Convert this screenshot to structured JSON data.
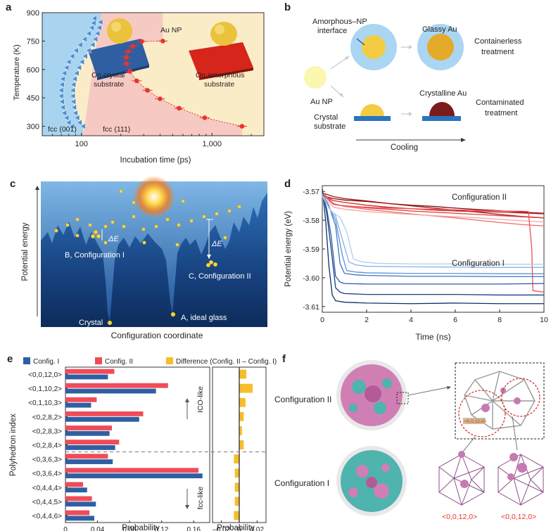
{
  "panel_labels": [
    "a",
    "b",
    "c",
    "d",
    "e",
    "f"
  ],
  "colors": {
    "fcc_region": "#a9d4ef",
    "crystal_region": "#f7c9c3",
    "amorphous_region": "#fbecc8",
    "tri_marker": "#4d8fd1",
    "red_marker": "#e8332f",
    "config1_bar": "#2e5fa3",
    "config2_bar": "#ef4b59",
    "difference_bar": "#f6be2b",
    "gold": "#f3cc43",
    "crystal_substrate": "#2f5fa2",
    "amorphous_substrate": "#d6251a"
  },
  "panel_a": {
    "ylabel": "Temperature (K)",
    "xlabel": "Incubation time (ps)",
    "annotations": {
      "au_np": "Au NP",
      "crystal": [
        "On crystal",
        "substrate"
      ],
      "amorphous": [
        "On amorphous",
        "substrate"
      ],
      "fcc001": "fcc (001)",
      "fcc111": "fcc (111)"
    }
  },
  "panel_b": {
    "amorphous_interface": [
      "Amorphous–NP",
      "interface"
    ],
    "glassy_au": "Glassy Au",
    "containerless": [
      "Containerless",
      "treatment"
    ],
    "au_np": "Au NP",
    "crystal_substrate": [
      "Crystal",
      "substrate"
    ],
    "crystalline_au": "Crystalline Au",
    "contaminated": [
      "Contaminated",
      "treatment"
    ],
    "cooling": "Cooling"
  },
  "panel_c": {
    "ylabel": "Potential energy",
    "xlabel": "Configuration coordinate",
    "delta_e": "ΔE",
    "config1": "B, Configuration I",
    "config2": "C, Configuration II",
    "crystal": "Crystal",
    "glass": "A, ideal glass"
  },
  "panel_f": {
    "config2": "Configuration II",
    "config1": "Configuration I",
    "poly_label": "<0,0,12,0>"
  },
  "chart_data": [
    {
      "panel": "a",
      "type": "scatter",
      "xlabel": "Incubation time (ps)",
      "ylabel": "Temperature (K)",
      "xscale": "log",
      "xlim": [
        50,
        2500
      ],
      "ylim": [
        250,
        900
      ],
      "xticks": [
        100,
        1000
      ],
      "xtick_labels": [
        "100",
        "1,000"
      ],
      "yticks": [
        300,
        450,
        600,
        750,
        900
      ],
      "series": [
        {
          "name": "fcc (001)",
          "points": [
            [
              85,
              300
            ],
            [
              80,
              320
            ],
            [
              77,
              345
            ],
            [
              74,
              370
            ],
            [
              72,
              400
            ],
            [
              71,
              430
            ],
            [
              70,
              460
            ],
            [
              70,
              490
            ],
            [
              71,
              520
            ],
            [
              72,
              550
            ],
            [
              74,
              580
            ],
            [
              77,
              610
            ],
            [
              80,
              640
            ],
            [
              85,
              670
            ],
            [
              91,
              700
            ],
            [
              98,
              730
            ],
            [
              106,
              760
            ],
            [
              114,
              790
            ],
            [
              120,
              820
            ],
            [
              124,
              845
            ],
            [
              126,
              870
            ]
          ]
        },
        {
          "name": "fcc (111)",
          "points": [
            [
              103,
              300
            ],
            [
              97,
              320
            ],
            [
              93,
              345
            ],
            [
              90,
              370
            ],
            [
              88,
              400
            ],
            [
              87,
              430
            ],
            [
              86,
              460
            ],
            [
              86,
              490
            ],
            [
              87,
              520
            ],
            [
              89,
              550
            ],
            [
              92,
              580
            ],
            [
              96,
              610
            ],
            [
              101,
              640
            ],
            [
              107,
              670
            ],
            [
              114,
              700
            ],
            [
              122,
              730
            ],
            [
              128,
              760
            ],
            [
              133,
              790
            ],
            [
              137,
              820
            ],
            [
              140,
              850
            ]
          ]
        },
        {
          "name": "Au NP",
          "points": [
            [
              1700,
              300
            ],
            [
              880,
              345
            ],
            [
              560,
              395
            ],
            [
              400,
              445
            ],
            [
              320,
              490
            ],
            [
              265,
              540
            ],
            [
              235,
              590
            ],
            [
              222,
              630
            ],
            [
              220,
              665
            ],
            [
              228,
              695
            ],
            [
              248,
              722
            ],
            [
              290,
              748
            ],
            [
              420,
              750
            ]
          ]
        }
      ]
    },
    {
      "panel": "d",
      "type": "line",
      "xlabel": "Time (ns)",
      "ylabel": "Potential energy (eV)",
      "xlim": [
        0,
        10
      ],
      "ylim": [
        -3.612,
        -3.568
      ],
      "xticks": [
        0,
        2,
        4,
        6,
        8,
        10
      ],
      "yticks": [
        -3.57,
        -3.58,
        -3.59,
        -3.6,
        -3.61
      ],
      "annotations": [
        "Configuration II",
        "Configuration I"
      ],
      "series": [
        {
          "group": "Configuration II",
          "color": "#7d0c0c",
          "x": [
            0,
            0.5,
            1,
            2,
            3,
            4,
            5,
            6,
            7,
            8,
            9,
            10
          ],
          "y": [
            -3.5715,
            -3.5725,
            -3.573,
            -3.5735,
            -3.5742,
            -3.5748,
            -3.5752,
            -3.5758,
            -3.5763,
            -3.5767,
            -3.5772,
            -3.5776
          ]
        },
        {
          "group": "Configuration II",
          "color": "#a31515",
          "x": [
            0,
            0.5,
            1,
            2,
            3,
            4,
            5,
            6,
            7,
            8,
            9,
            10
          ],
          "y": [
            -3.5705,
            -3.5718,
            -3.5725,
            -3.5733,
            -3.5742,
            -3.575,
            -3.5758,
            -3.5765,
            -3.5772,
            -3.578,
            -3.5787,
            -3.5792
          ]
        },
        {
          "group": "Configuration II",
          "color": "#c8262a",
          "x": [
            0,
            0.5,
            1,
            2,
            3,
            4,
            5,
            6,
            7,
            8,
            9,
            10
          ],
          "y": [
            -3.5712,
            -3.5732,
            -3.5738,
            -3.5748,
            -3.5755,
            -3.576,
            -3.5765,
            -3.5768,
            -3.577,
            -3.5772,
            -3.5775,
            -3.5778
          ]
        },
        {
          "group": "Configuration II",
          "color": "#e03a3a",
          "x": [
            0,
            0.5,
            1,
            2,
            3,
            4,
            5,
            6,
            7,
            8,
            9,
            10
          ],
          "y": [
            -3.5708,
            -3.5745,
            -3.575,
            -3.5757,
            -3.5762,
            -3.5768,
            -3.5772,
            -3.5776,
            -3.578,
            -3.5784,
            -3.5788,
            -3.5792
          ]
        },
        {
          "group": "Configuration II",
          "color": "#ee6b6b",
          "x": [
            0,
            0.5,
            1,
            2,
            3,
            4,
            5,
            6,
            7,
            8,
            9,
            10
          ],
          "y": [
            -3.5702,
            -3.5742,
            -3.5752,
            -3.5762,
            -3.577,
            -3.5778,
            -3.5785,
            -3.5792,
            -3.58,
            -3.5808,
            -3.5815,
            -3.582
          ]
        },
        {
          "group": "Configuration II",
          "color": "#f5a6a6",
          "x": [
            0,
            0.5,
            1,
            2,
            3,
            4,
            5,
            6,
            7,
            8,
            9,
            10
          ],
          "y": [
            -3.5715,
            -3.5755,
            -3.5762,
            -3.577,
            -3.5775,
            -3.578,
            -3.5784,
            -3.5788,
            -3.5792,
            -3.5797,
            -3.5802,
            -3.5806
          ]
        },
        {
          "group": "Configuration II",
          "color": "#f04e4e",
          "x": [
            0,
            0.5,
            1,
            2,
            3,
            4,
            5,
            6,
            7,
            8,
            9,
            9.3,
            9.45,
            9.5,
            10
          ],
          "y": [
            -3.571,
            -3.5745,
            -3.575,
            -3.5755,
            -3.5758,
            -3.576,
            -3.5762,
            -3.5764,
            -3.5766,
            -3.5768,
            -3.5769,
            -3.577,
            -3.59,
            -3.6045,
            -3.605
          ]
        },
        {
          "group": "Configuration I",
          "color": "#0d2f6b",
          "x": [
            0,
            0.15,
            0.3,
            0.45,
            0.6,
            1,
            2,
            4,
            6,
            8,
            10
          ],
          "y": [
            -3.569,
            -3.58,
            -3.596,
            -3.606,
            -3.608,
            -3.6085,
            -3.6088,
            -3.609,
            -3.6088,
            -3.609,
            -3.609
          ]
        },
        {
          "group": "Configuration I",
          "color": "#163f86",
          "x": [
            0,
            0.2,
            0.4,
            0.6,
            0.8,
            1,
            2,
            4,
            6,
            8,
            10
          ],
          "y": [
            -3.5695,
            -3.5775,
            -3.59,
            -3.6035,
            -3.605,
            -3.6055,
            -3.6058,
            -3.6058,
            -3.6058,
            -3.606,
            -3.606
          ]
        },
        {
          "group": "Configuration I",
          "color": "#2a5aa8",
          "x": [
            0,
            0.2,
            0.4,
            0.6,
            0.8,
            1,
            2,
            4,
            6,
            8,
            10
          ],
          "y": [
            -3.5705,
            -3.576,
            -3.5855,
            -3.5995,
            -3.6015,
            -3.602,
            -3.6022,
            -3.6022,
            -3.6022,
            -3.6022,
            -3.602
          ]
        },
        {
          "group": "Configuration I",
          "color": "#3a75c4",
          "x": [
            0,
            0.3,
            0.6,
            0.8,
            1,
            1.5,
            2,
            4,
            6,
            8,
            10
          ],
          "y": [
            -3.571,
            -3.575,
            -3.582,
            -3.595,
            -3.5985,
            -3.599,
            -3.5992,
            -3.5995,
            -3.5995,
            -3.5996,
            -3.5996
          ]
        },
        {
          "group": "Configuration I",
          "color": "#5b93d6",
          "x": [
            0,
            0.3,
            0.6,
            0.9,
            1.1,
            1.5,
            2,
            4,
            6,
            8,
            10
          ],
          "y": [
            -3.5715,
            -3.5755,
            -3.58,
            -3.592,
            -3.5975,
            -3.598,
            -3.5983,
            -3.5985,
            -3.5985,
            -3.5986,
            -3.5986
          ]
        },
        {
          "group": "Configuration I",
          "color": "#87b2e4",
          "x": [
            0,
            0.3,
            0.6,
            0.9,
            1.2,
            1.5,
            2,
            4,
            6,
            8,
            10
          ],
          "y": [
            -3.571,
            -3.5758,
            -3.5785,
            -3.5865,
            -3.5945,
            -3.5955,
            -3.596,
            -3.5962,
            -3.5963,
            -3.5964,
            -3.5964
          ]
        },
        {
          "group": "Configuration I",
          "color": "#b1cdee",
          "x": [
            0,
            0.4,
            0.8,
            1.1,
            1.4,
            1.8,
            2.5,
            4,
            6,
            8,
            10
          ],
          "y": [
            -3.5718,
            -3.577,
            -3.579,
            -3.584,
            -3.5935,
            -3.5945,
            -3.595,
            -3.5952,
            -3.5952,
            -3.5953,
            -3.5953
          ]
        }
      ]
    },
    {
      "panel": "e",
      "type": "bar",
      "orientation": "horizontal",
      "ylabel": "Polyhedron index",
      "categories": [
        "<0,0,12,0>",
        "<0,1,10,2>",
        "<0,1,10,3>",
        "<0,2,8,2>",
        "<0,2,8,3>",
        "<0,2,8,4>",
        "<0,3,6,3>",
        "<0,3,6,4>",
        "<0,4,4,4>",
        "<0,4,4,5>",
        "<0,4,4,6>"
      ],
      "legend": [
        "Config. I",
        "Config. II",
        "Difference (Config. II – Config. I)"
      ],
      "left": {
        "xlabel": "Probability",
        "xlim": [
          0,
          0.18
        ],
        "xticks": [
          0,
          0.04,
          0.08,
          0.12,
          0.16
        ],
        "xtick_labels": [
          "0",
          "0.04",
          "0.08",
          "0.12",
          "0.16"
        ],
        "series": [
          {
            "name": "Config. I",
            "values": [
              0.053,
              0.113,
              0.032,
              0.092,
              0.055,
              0.062,
              0.059,
              0.171,
              0.027,
              0.038,
              0.036
            ]
          },
          {
            "name": "Config. II",
            "values": [
              0.061,
              0.128,
              0.039,
              0.097,
              0.058,
              0.067,
              0.053,
              0.166,
              0.022,
              0.033,
              0.03
            ]
          }
        ]
      },
      "right": {
        "xlabel": "Probability",
        "xlim": [
          -0.03,
          0.03
        ],
        "xticks": [
          -0.02,
          0,
          0.02
        ],
        "xtick_labels": [
          "–0.02",
          "0",
          "0.02"
        ],
        "series": [
          {
            "name": "Difference (Config. II – Config. I)",
            "values": [
              0.008,
              0.015,
              0.007,
              0.005,
              0.003,
              0.005,
              -0.006,
              -0.005,
              -0.005,
              -0.005,
              -0.006
            ]
          }
        ]
      },
      "annotations": [
        "ICO-like",
        "fcc-like"
      ]
    }
  ]
}
